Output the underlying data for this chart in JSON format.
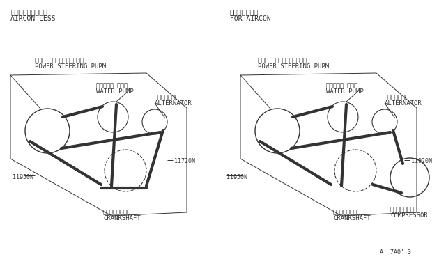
{
  "bg_color": "#ffffff",
  "line_color": "#333333",
  "title_left_jp": "エアコン　無し仕様",
  "title_left_en": "AIRCON LESS",
  "title_right_jp": "エアコン付仕様",
  "title_right_en": "FOR AIRCON",
  "watermark": "A' 7A0'.3",
  "left": {
    "ps_jp": "パワー ステアリング ポンプ",
    "ps_en": "POWER STEERING PUPM",
    "wp_jp": "ウォーター ポンプ",
    "wp_en": "WATER PUMP",
    "alt_jp": "オルタネイター",
    "alt_en": "ALTERNATOR",
    "cs_jp": "クランクシャフト",
    "cs_en": "CRANKSHAFT",
    "belt1_label": "11720N",
    "belt2_label": "11950N"
  },
  "right": {
    "ps_jp": "パワー ステアリング ポンプ",
    "ps_en": "POWER STEERING PUPM",
    "wp_jp": "ウォーター ポンプ",
    "wp_en": "WATER PUMP",
    "alt_jp": "オルタネイター",
    "alt_en": "ALTERNATOR",
    "cs_jp": "クランクシャフト",
    "cs_en": "CRANKSHAFT",
    "comp_jp": "コンプレッサー",
    "comp_en": "COMPRESSOR",
    "belt1_label": "11920N",
    "belt2_label": "11950N"
  }
}
